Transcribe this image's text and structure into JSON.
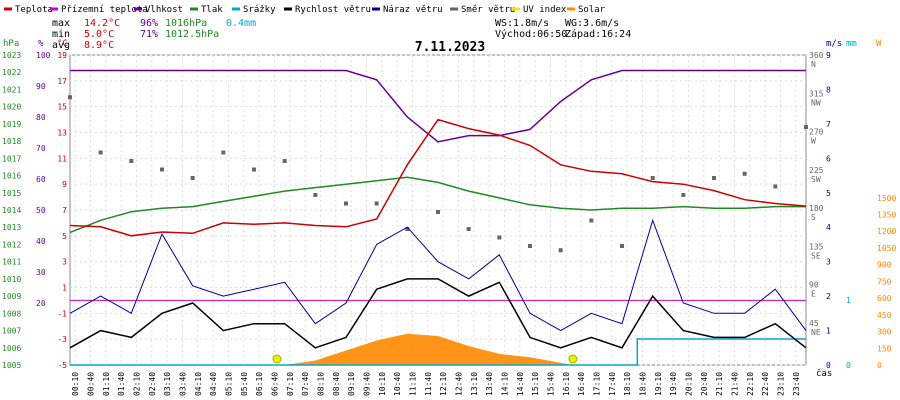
{
  "legend": [
    {
      "label": "Teplota",
      "color": "#cc0000"
    },
    {
      "label": "Přízemní teplota",
      "color": "#cc00cc"
    },
    {
      "label": "Vlhkost",
      "color": "#660099"
    },
    {
      "label": "Tlak",
      "color": "#228822"
    },
    {
      "label": "Srážky",
      "color": "#00aacc"
    },
    {
      "label": "Rychlost větru",
      "color": "#000000"
    },
    {
      "label": "Náraz větru",
      "color": "#000099"
    },
    {
      "label": "Směr větru",
      "color": "#666666"
    },
    {
      "label": "UV index",
      "color": "#eeee00"
    },
    {
      "label": "Solar",
      "color": "#ff8800"
    }
  ],
  "stats": {
    "max_label": "max",
    "max_temp": "14.2°C",
    "max_hum": "96%",
    "max_press": "1016hPa",
    "max_rain": "0.4mm",
    "min_label": "min",
    "min_temp": "5.0°C",
    "min_hum": "71%",
    "min_press": "1012.5hPa",
    "avg_label": "avg",
    "avg_temp": "8.9°C"
  },
  "wind_info": {
    "ws": "WS:1.8m/s",
    "wg": "WG:3.6m/s",
    "sunrise": "Východ:06:50",
    "sunset": "Západ:16:24"
  },
  "colors": {
    "temp": "#cc0000",
    "ground": "#cc00cc",
    "humidity": "#660099",
    "pressure": "#228822",
    "rain": "#00aacc",
    "wind": "#000000",
    "gust": "#000099",
    "direction": "#666666",
    "uv": "#eeee00",
    "solar": "#ff8800"
  },
  "chart_data": {
    "type": "line",
    "title": "7.11.2023",
    "xlabel": "čas",
    "x_ticks": [
      "00:10",
      "00:40",
      "01:10",
      "01:40",
      "02:10",
      "02:40",
      "03:10",
      "03:40",
      "04:10",
      "04:40",
      "05:10",
      "05:40",
      "06:10",
      "06:40",
      "07:10",
      "07:40",
      "08:10",
      "08:40",
      "09:10",
      "09:40",
      "10:10",
      "10:40",
      "11:10",
      "11:40",
      "12:10",
      "12:40",
      "13:10",
      "13:40",
      "14:10",
      "14:40",
      "15:10",
      "15:40",
      "16:10",
      "16:40",
      "17:10",
      "17:40",
      "18:10",
      "18:40",
      "19:10",
      "19:40",
      "20:10",
      "20:40",
      "21:10",
      "21:40",
      "22:10",
      "22:40",
      "23:10",
      "23:40"
    ],
    "axes": {
      "pressure": {
        "label": "hPa",
        "range": [
          1005,
          1023
        ],
        "ticks": [
          1005,
          1006,
          1007,
          1008,
          1009,
          1010,
          1011,
          1012,
          1013,
          1014,
          1015,
          1016,
          1017,
          1018,
          1019,
          1020,
          1021,
          1022,
          1023
        ]
      },
      "humidity": {
        "label": "%",
        "range": [
          0,
          100
        ],
        "ticks": [
          20,
          30,
          40,
          50,
          60,
          70,
          80,
          90,
          100
        ]
      },
      "temperature": {
        "label": "°C",
        "range": [
          -5,
          19
        ],
        "ticks": [
          -5,
          -3,
          -1,
          1,
          3,
          5,
          7,
          9,
          11,
          13,
          15,
          17,
          19
        ]
      },
      "direction": {
        "label": "",
        "ticks": [
          {
            "v": 45,
            "d": "NE"
          },
          {
            "v": 90,
            "d": "E"
          },
          {
            "v": 135,
            "d": "SE"
          },
          {
            "v": 180,
            "d": "S"
          },
          {
            "v": 225,
            "d": "SW"
          },
          {
            "v": 270,
            "d": "W"
          },
          {
            "v": 315,
            "d": "NW"
          },
          {
            "v": 360,
            "d": "N"
          }
        ]
      },
      "wind": {
        "label": "m/s",
        "range": [
          0,
          9
        ],
        "ticks": [
          0,
          1,
          2,
          3,
          4,
          5,
          6,
          7,
          8,
          9
        ]
      },
      "rain": {
        "label": "mm",
        "range": [
          0,
          1
        ],
        "ticks": [
          0,
          1
        ]
      },
      "solar": {
        "label": "W",
        "range": [
          0,
          2000
        ],
        "ticks": [
          0,
          150,
          300,
          450,
          600,
          750,
          900,
          1050,
          1200,
          1350,
          1500
        ]
      }
    },
    "series": [
      {
        "name": "Teplota",
        "axis": "temperature",
        "x": [
          0,
          1,
          2,
          3,
          4,
          5,
          6,
          7,
          8,
          9,
          10,
          11,
          12,
          13,
          14,
          15,
          16,
          17,
          18,
          19,
          20,
          21,
          22,
          23,
          24
        ],
        "values": [
          5.8,
          5.7,
          5.0,
          5.3,
          5.2,
          6.0,
          5.9,
          6.0,
          5.8,
          5.7,
          6.3,
          10.5,
          14.0,
          13.3,
          12.8,
          12.0,
          10.5,
          10.0,
          9.8,
          9.2,
          9.0,
          8.5,
          7.8,
          7.5,
          7.3
        ]
      },
      {
        "name": "Vlhkost",
        "axis": "humidity",
        "x": [
          0,
          1,
          2,
          3,
          4,
          5,
          6,
          7,
          8,
          9,
          10,
          11,
          12,
          13,
          14,
          15,
          16,
          17,
          18,
          19,
          20,
          21,
          22,
          23,
          24
        ],
        "values": [
          95,
          95,
          95,
          95,
          95,
          95,
          95,
          95,
          95,
          95,
          92,
          80,
          72,
          74,
          74,
          76,
          85,
          92,
          95,
          95,
          95,
          95,
          95,
          95,
          95
        ]
      },
      {
        "name": "Tlak",
        "axis": "pressure",
        "x": [
          0,
          1,
          2,
          3,
          4,
          5,
          6,
          7,
          8,
          9,
          10,
          11,
          12,
          13,
          14,
          15,
          16,
          17,
          18,
          19,
          20,
          21,
          22,
          23,
          24
        ],
        "values": [
          1012.7,
          1013.4,
          1013.9,
          1014.1,
          1014.2,
          1014.5,
          1014.8,
          1015.1,
          1015.3,
          1015.5,
          1015.7,
          1015.9,
          1015.6,
          1015.1,
          1014.7,
          1014.3,
          1014.1,
          1014.0,
          1014.1,
          1014.1,
          1014.2,
          1014.1,
          1014.1,
          1014.2,
          1014.2
        ]
      },
      {
        "name": "Srážky",
        "axis": "rain",
        "x": [
          0,
          18.5,
          18.5,
          24
        ],
        "values": [
          0,
          0,
          0.4,
          0.4
        ]
      },
      {
        "name": "Rychlost větru",
        "axis": "wind",
        "x": [
          0,
          1,
          2,
          3,
          4,
          5,
          6,
          7,
          8,
          9,
          10,
          11,
          12,
          13,
          14,
          15,
          16,
          17,
          18,
          19,
          20,
          21,
          22,
          23,
          24
        ],
        "values": [
          0.5,
          1.0,
          0.8,
          1.5,
          1.8,
          1.0,
          1.2,
          1.2,
          0.5,
          0.8,
          2.2,
          2.5,
          2.5,
          2.0,
          2.4,
          0.8,
          0.5,
          0.8,
          0.5,
          2.0,
          1.0,
          0.8,
          0.8,
          1.2,
          0.5
        ]
      },
      {
        "name": "Náraz větru",
        "axis": "wind",
        "x": [
          0,
          1,
          2,
          3,
          4,
          5,
          6,
          7,
          8,
          9,
          10,
          11,
          12,
          13,
          14,
          15,
          16,
          17,
          18,
          19,
          20,
          21,
          22,
          23,
          24
        ],
        "values": [
          1.5,
          2.0,
          1.5,
          3.8,
          2.3,
          2.0,
          2.2,
          2.4,
          1.2,
          1.8,
          3.5,
          4.0,
          3.0,
          2.5,
          3.2,
          1.5,
          1.0,
          1.5,
          1.2,
          4.2,
          1.8,
          1.5,
          1.5,
          2.2,
          1.0
        ]
      },
      {
        "name": "Solar",
        "axis": "solar",
        "x": [
          7,
          8,
          9,
          10,
          11,
          12,
          13,
          14,
          15,
          16,
          16.4
        ],
        "values": [
          0,
          40,
          130,
          220,
          280,
          260,
          170,
          100,
          70,
          20,
          0
        ]
      },
      {
        "name": "Směr větru",
        "axis": "direction",
        "x": [
          0,
          1,
          2,
          3,
          4,
          5,
          6,
          7,
          8,
          9,
          10,
          11,
          12,
          13,
          14,
          15,
          16,
          17,
          18,
          19,
          20,
          21,
          22,
          23,
          24
        ],
        "values": [
          315,
          250,
          240,
          230,
          220,
          250,
          230,
          240,
          200,
          190,
          190,
          160,
          180,
          160,
          150,
          140,
          135,
          170,
          140,
          220,
          200,
          220,
          225,
          210,
          280
        ]
      }
    ],
    "uv_markers": {
      "x": [
        6.75,
        16.4
      ],
      "value": 0
    },
    "ground_temp_line": {
      "axis": "temperature",
      "value": 0
    }
  }
}
